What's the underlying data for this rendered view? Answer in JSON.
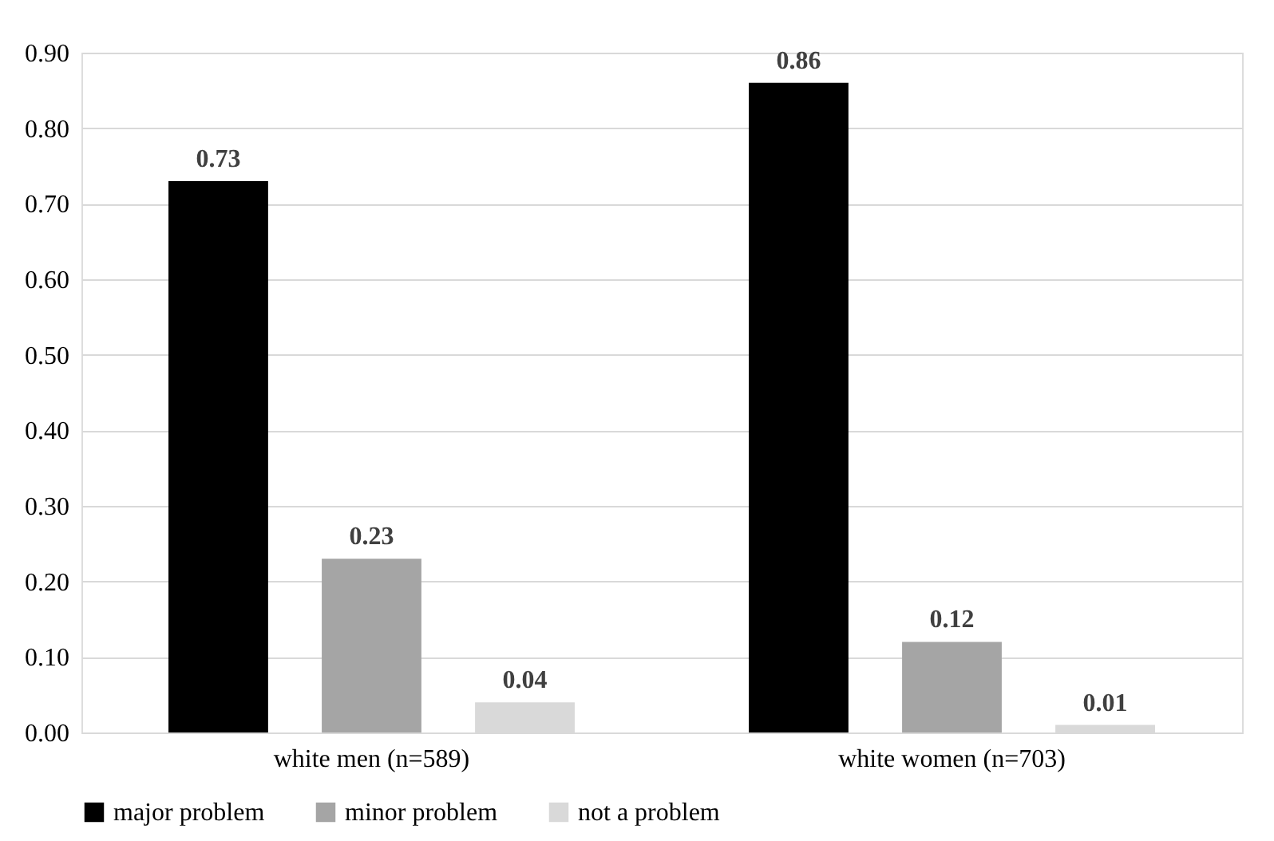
{
  "chart_data": {
    "type": "bar",
    "categories": [
      "white men (n=589)",
      "white women (n=703)"
    ],
    "series": [
      {
        "name": "major problem",
        "color": "#000000",
        "values": [
          0.73,
          0.86
        ]
      },
      {
        "name": "minor problem",
        "color": "#a5a5a5",
        "values": [
          0.23,
          0.12
        ]
      },
      {
        "name": "not a problem",
        "color": "#d9d9d9",
        "values": [
          0.04,
          0.01
        ]
      }
    ],
    "ylim": [
      0,
      0.9
    ],
    "yticks": [
      {
        "value": 0,
        "label": "0.00"
      },
      {
        "value": 0.1,
        "label": "0.10"
      },
      {
        "value": 0.2,
        "label": "0.20"
      },
      {
        "value": 0.3,
        "label": "0.30"
      },
      {
        "value": 0.4,
        "label": "0.40"
      },
      {
        "value": 0.5,
        "label": "0.50"
      },
      {
        "value": 0.6,
        "label": "0.60"
      },
      {
        "value": 0.7,
        "label": "0.70"
      },
      {
        "value": 0.8,
        "label": "0.80"
      },
      {
        "value": 0.9,
        "label": "0.90"
      }
    ],
    "grid": "y",
    "legend": "bottom",
    "data_labels": true
  }
}
